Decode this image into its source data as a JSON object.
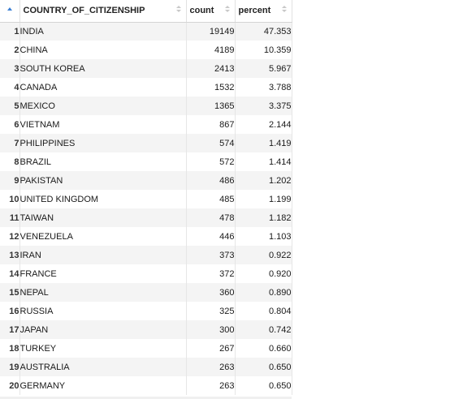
{
  "table": {
    "columns": [
      {
        "label": "COUNTRY_OF_CITIZENSHIP",
        "sort": "ascending"
      },
      {
        "label": "count",
        "sort": "none"
      },
      {
        "label": "percent",
        "sort": "none"
      }
    ],
    "rows": [
      {
        "index": "1",
        "country": "INDIA",
        "count": "19149",
        "percent": "47.353"
      },
      {
        "index": "2",
        "country": "CHINA",
        "count": "4189",
        "percent": "10.359"
      },
      {
        "index": "3",
        "country": "SOUTH KOREA",
        "count": "2413",
        "percent": "5.967"
      },
      {
        "index": "4",
        "country": "CANADA",
        "count": "1532",
        "percent": "3.788"
      },
      {
        "index": "5",
        "country": "MEXICO",
        "count": "1365",
        "percent": "3.375"
      },
      {
        "index": "6",
        "country": "VIETNAM",
        "count": "867",
        "percent": "2.144"
      },
      {
        "index": "7",
        "country": "PHILIPPINES",
        "count": "574",
        "percent": "1.419"
      },
      {
        "index": "8",
        "country": "BRAZIL",
        "count": "572",
        "percent": "1.414"
      },
      {
        "index": "9",
        "country": "PAKISTAN",
        "count": "486",
        "percent": "1.202"
      },
      {
        "index": "10",
        "country": "UNITED KINGDOM",
        "count": "485",
        "percent": "1.199"
      },
      {
        "index": "11",
        "country": "TAIWAN",
        "count": "478",
        "percent": "1.182"
      },
      {
        "index": "12",
        "country": "VENEZUELA",
        "count": "446",
        "percent": "1.103"
      },
      {
        "index": "13",
        "country": "IRAN",
        "count": "373",
        "percent": "0.922"
      },
      {
        "index": "14",
        "country": "FRANCE",
        "count": "372",
        "percent": "0.920"
      },
      {
        "index": "15",
        "country": "NEPAL",
        "count": "360",
        "percent": "0.890"
      },
      {
        "index": "16",
        "country": "RUSSIA",
        "count": "325",
        "percent": "0.804"
      },
      {
        "index": "17",
        "country": "JAPAN",
        "count": "300",
        "percent": "0.742"
      },
      {
        "index": "18",
        "country": "TURKEY",
        "count": "267",
        "percent": "0.660"
      },
      {
        "index": "19",
        "country": "AUSTRALIA",
        "count": "263",
        "percent": "0.650"
      },
      {
        "index": "20",
        "country": "GERMANY",
        "count": "263",
        "percent": "0.650"
      }
    ]
  },
  "colors": {
    "sort_active": "#3b7fd4",
    "sort_inactive": "#c8c8c8",
    "row_stripe": "#f4f4f4"
  },
  "icons": {
    "index_header": "sort-ascending-icon",
    "column_sort": "sort-toggle-icon"
  }
}
